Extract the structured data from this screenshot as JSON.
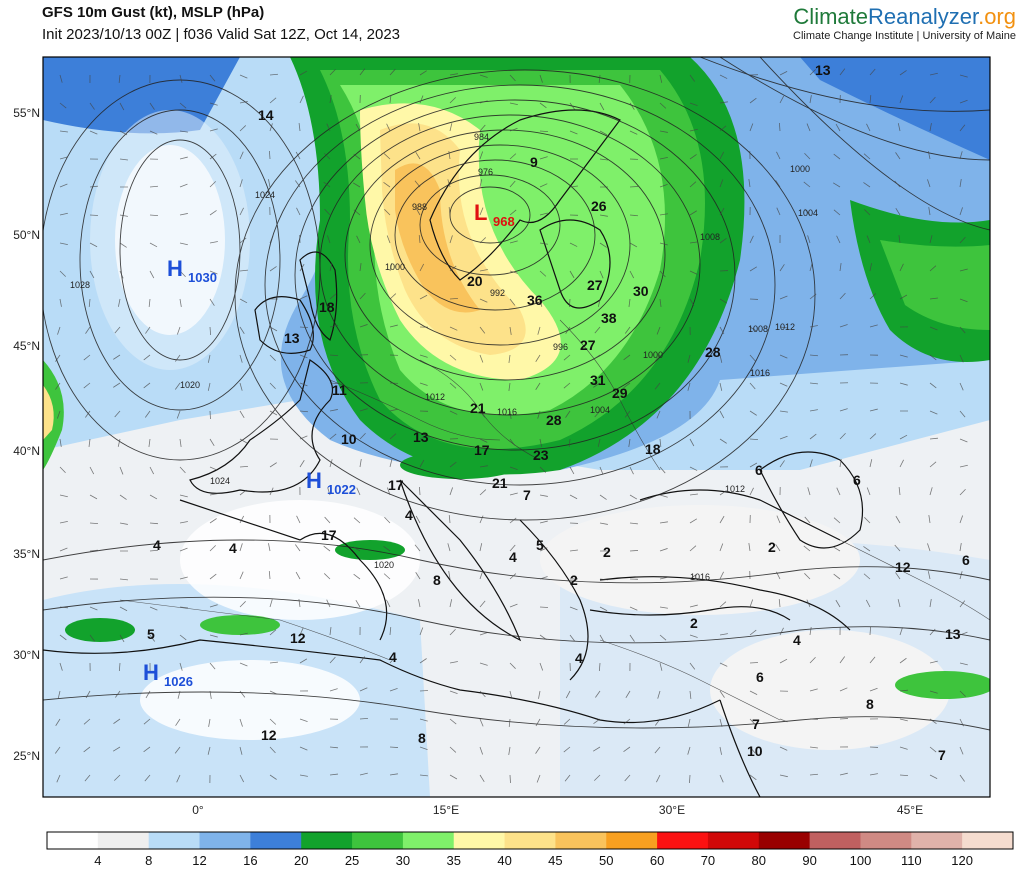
{
  "header": {
    "title": "GFS 10m Gust (kt), MSLP (hPa)",
    "subtitle": "Init 2023/10/13 00Z | f036 Valid Sat 12Z, Oct 14, 2023",
    "brand_part1": "Climate",
    "brand_part2": "Reanalyzer",
    "brand_part3": ".org",
    "brand_sub": "Climate Change Institute | University of Maine"
  },
  "axes": {
    "lat_labels": [
      "55°N",
      "50°N",
      "45°N",
      "40°N",
      "35°N",
      "30°N",
      "25°N"
    ],
    "lon_labels": [
      "0°",
      "15°E",
      "30°E",
      "45°E"
    ]
  },
  "pressure_centers": [
    {
      "type": "H",
      "value": "1030",
      "color": "#1d4fd8"
    },
    {
      "type": "H",
      "value": "1022",
      "color": "#1d4fd8"
    },
    {
      "type": "H",
      "value": "1026",
      "color": "#1d4fd8"
    },
    {
      "type": "L",
      "value": "968",
      "color": "#e01010"
    }
  ],
  "gust_labels": [
    "13",
    "14",
    "9",
    "26",
    "20",
    "27",
    "30",
    "36",
    "38",
    "18",
    "13",
    "27",
    "28",
    "11",
    "31",
    "29",
    "21",
    "13",
    "10",
    "28",
    "17",
    "23",
    "18",
    "21",
    "17",
    "6",
    "6",
    "4",
    "4",
    "17",
    "4",
    "5",
    "2",
    "2",
    "2",
    "12",
    "6",
    "4",
    "8",
    "2",
    "5",
    "12",
    "4",
    "4",
    "13",
    "4",
    "6",
    "8",
    "12",
    "8",
    "10",
    "7",
    "7",
    "7"
  ],
  "isobar_labels": [
    "984",
    "976",
    "988",
    "1000",
    "992",
    "996",
    "1000",
    "1004",
    "1008",
    "1012",
    "1016",
    "1020",
    "1024",
    "1028",
    "1012",
    "1016",
    "1024",
    "1020",
    "1016",
    "1012",
    "1000",
    "1004",
    "1008"
  ],
  "colorbar": {
    "unit": "kt",
    "levels": [
      "4",
      "8",
      "12",
      "16",
      "20",
      "25",
      "30",
      "35",
      "40",
      "45",
      "50",
      "60",
      "70",
      "80",
      "90",
      "100",
      "110",
      "120"
    ],
    "colors": [
      "#ffffff",
      "#efefef",
      "#b9dcf7",
      "#7fb3ea",
      "#3d7fd9",
      "#12a22c",
      "#3ec43d",
      "#7ff06a",
      "#fff8a8",
      "#fde28a",
      "#f9c35c",
      "#f8a020",
      "#fb1111",
      "#d10808",
      "#990000",
      "#c06060",
      "#d08a84",
      "#e0b2aa",
      "#f5dccf"
    ]
  }
}
